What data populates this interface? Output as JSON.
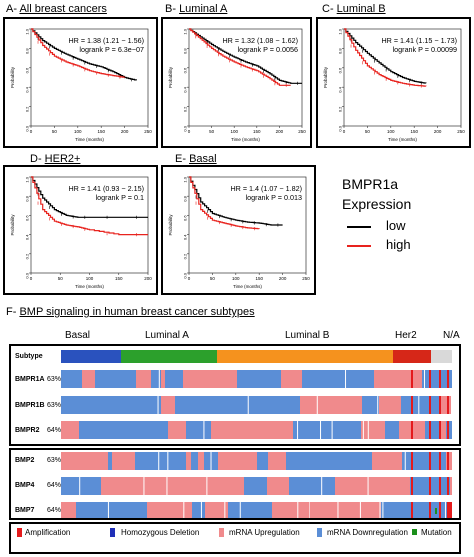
{
  "panels": [
    {
      "id": "A",
      "prefix": "A-",
      "title": "All breast cancers",
      "hr": "HR = 1.38 (1.21 − 1.56)",
      "p": "logrank P = 6.3e−07"
    },
    {
      "id": "B",
      "prefix": "B-",
      "title": "Luminal A",
      "hr": "HR = 1.32 (1.08 − 1.62)",
      "p": "logrank P = 0.0056"
    },
    {
      "id": "C",
      "prefix": "C-",
      "title": "Luminal B",
      "hr": "HR = 1.41 (1.15 − 1.73)",
      "p": "logrank P = 0.00099"
    },
    {
      "id": "D",
      "prefix": "D-",
      "title": "HER2+",
      "hr": "HR = 1.41 (0.93 − 2.15)",
      "p": "logrank P = 0.1"
    },
    {
      "id": "E",
      "prefix": "E-",
      "title": "Basal",
      "hr": "HR = 1.4 (1.07 − 1.82)",
      "p": "logrank P = 0.013"
    }
  ],
  "axis": {
    "ylabel": "Probability",
    "xlabel": "Time (months)",
    "xticks": [
      "0",
      "50",
      "100",
      "150",
      "200",
      "250"
    ],
    "yticks": [
      "0.0",
      "0.2",
      "0.4",
      "0.6",
      "0.8",
      "1.0"
    ]
  },
  "legend": {
    "title_line1": "BMPR1a",
    "title_line2": "Expression",
    "low": "low",
    "high": "high",
    "low_color": "#000000",
    "high_color": "#e8231e"
  },
  "section_f": {
    "prefix": "F-",
    "title": "BMP signaling in human breast cancer subtypes"
  },
  "subtypes": [
    {
      "label": "Basal",
      "color": "#2a52be"
    },
    {
      "label": "Luminal A",
      "color": "#2ca02c"
    },
    {
      "label": "Luminal B",
      "color": "#f5921e"
    },
    {
      "label": "Her2",
      "color": "#d62718"
    },
    {
      "label": "N/A",
      "color": "#d9d9d9"
    }
  ],
  "onco": {
    "subtype_label": "Subtype",
    "rows_top": [
      {
        "name": "BMPR1A",
        "pct": "63%"
      },
      {
        "name": "BMPR1B",
        "pct": "63%"
      },
      {
        "name": "BMPR2",
        "pct": "64%"
      }
    ],
    "rows_bottom": [
      {
        "name": "BMP2",
        "pct": "63%"
      },
      {
        "name": "BMP4",
        "pct": "64%"
      },
      {
        "name": "BMP7",
        "pct": "64%"
      }
    ],
    "pink": "#f08a8c",
    "blue": "#5b8ed6",
    "red": "#e41a1c",
    "darkblue": "#1f2fb8",
    "green": "#1b8f1b"
  },
  "onco_legend": [
    {
      "label": "Amplification",
      "color": "#e41a1c"
    },
    {
      "label": "Homozygous Deletion",
      "color": "#1f2fb8"
    },
    {
      "label": "mRNA Upregulation",
      "color": "#f08a8c"
    },
    {
      "label": "mRNA Downregulation",
      "color": "#5b8ed6"
    },
    {
      "label": "Mutation",
      "color": "#1b8f1b"
    }
  ],
  "chart_data": [
    {
      "type": "line",
      "title": "All breast cancers",
      "xlabel": "Time (months)",
      "ylabel": "Probability",
      "xlim": [
        0,
        250
      ],
      "ylim": [
        0,
        1
      ],
      "series": [
        {
          "name": "low",
          "x": [
            0,
            25,
            50,
            75,
            100,
            125,
            150,
            175,
            200,
            225
          ],
          "y": [
            1,
            0.88,
            0.8,
            0.74,
            0.69,
            0.64,
            0.61,
            0.56,
            0.5,
            0.47
          ]
        },
        {
          "name": "high",
          "x": [
            0,
            25,
            50,
            75,
            100,
            125,
            150,
            175,
            200
          ],
          "y": [
            1,
            0.83,
            0.72,
            0.66,
            0.62,
            0.57,
            0.54,
            0.52,
            0.5
          ]
        }
      ]
    },
    {
      "type": "line",
      "title": "Luminal A",
      "xlabel": "Time (months)",
      "ylabel": "Probability",
      "xlim": [
        0,
        250
      ],
      "ylim": [
        0,
        1
      ],
      "series": [
        {
          "name": "low",
          "x": [
            0,
            25,
            50,
            75,
            100,
            125,
            150,
            175,
            200,
            225,
            250
          ],
          "y": [
            1,
            0.92,
            0.84,
            0.77,
            0.71,
            0.66,
            0.62,
            0.55,
            0.47,
            0.44,
            0.44
          ]
        },
        {
          "name": "high",
          "x": [
            0,
            25,
            50,
            75,
            100,
            125,
            150,
            175,
            200,
            225
          ],
          "y": [
            1,
            0.9,
            0.8,
            0.72,
            0.66,
            0.61,
            0.57,
            0.5,
            0.42,
            0.42
          ]
        }
      ]
    },
    {
      "type": "line",
      "title": "Luminal B",
      "xlabel": "Time (months)",
      "ylabel": "Probability",
      "xlim": [
        0,
        250
      ],
      "ylim": [
        0,
        1
      ],
      "series": [
        {
          "name": "low",
          "x": [
            0,
            25,
            50,
            75,
            100,
            125,
            150,
            175
          ],
          "y": [
            1,
            0.86,
            0.75,
            0.65,
            0.56,
            0.5,
            0.46,
            0.44
          ]
        },
        {
          "name": "high",
          "x": [
            0,
            25,
            50,
            75,
            100,
            125,
            150,
            175
          ],
          "y": [
            1,
            0.78,
            0.62,
            0.53,
            0.47,
            0.44,
            0.42,
            0.41
          ]
        }
      ]
    },
    {
      "type": "line",
      "title": "HER2+",
      "xlabel": "Time (months)",
      "ylabel": "Probability",
      "xlim": [
        0,
        200
      ],
      "ylim": [
        0,
        1
      ],
      "series": [
        {
          "name": "low",
          "x": [
            0,
            20,
            40,
            60,
            80,
            100,
            150,
            200
          ],
          "y": [
            1,
            0.78,
            0.66,
            0.6,
            0.58,
            0.58,
            0.58,
            0.58
          ]
        },
        {
          "name": "high",
          "x": [
            0,
            20,
            40,
            60,
            80,
            100,
            150,
            200
          ],
          "y": [
            1,
            0.66,
            0.54,
            0.5,
            0.48,
            0.45,
            0.4,
            0.4
          ]
        }
      ]
    },
    {
      "type": "line",
      "title": "Basal",
      "xlabel": "Time (months)",
      "ylabel": "Probability",
      "xlim": [
        0,
        250
      ],
      "ylim": [
        0,
        1
      ],
      "series": [
        {
          "name": "low",
          "x": [
            0,
            25,
            50,
            75,
            100,
            125,
            150,
            175,
            200
          ],
          "y": [
            1,
            0.74,
            0.62,
            0.58,
            0.55,
            0.53,
            0.52,
            0.5,
            0.5
          ]
        },
        {
          "name": "high",
          "x": [
            0,
            25,
            50,
            75,
            100,
            125,
            150
          ],
          "y": [
            1,
            0.66,
            0.55,
            0.52,
            0.49,
            0.47,
            0.46
          ]
        }
      ]
    }
  ]
}
